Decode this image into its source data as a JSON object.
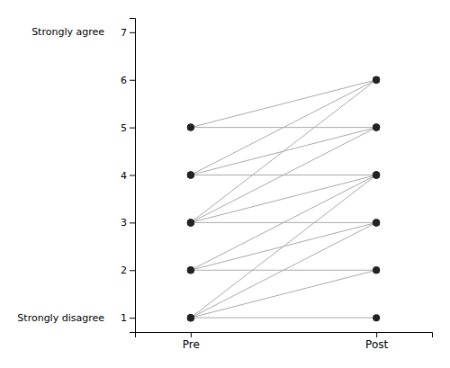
{
  "chart_data": {
    "type": "slope",
    "categories": [
      "Pre",
      "Post"
    ],
    "series": [
      {
        "values": [
          1,
          1
        ]
      },
      {
        "values": [
          1,
          2
        ]
      },
      {
        "values": [
          1,
          3
        ]
      },
      {
        "values": [
          1,
          4
        ]
      },
      {
        "values": [
          2,
          2
        ]
      },
      {
        "values": [
          2,
          3
        ]
      },
      {
        "values": [
          2,
          4
        ]
      },
      {
        "values": [
          3,
          3
        ]
      },
      {
        "values": [
          3,
          4
        ]
      },
      {
        "values": [
          3,
          5
        ]
      },
      {
        "values": [
          3,
          6
        ]
      },
      {
        "values": [
          4,
          4
        ]
      },
      {
        "values": [
          4,
          5
        ]
      },
      {
        "values": [
          4,
          6
        ]
      },
      {
        "values": [
          5,
          5
        ]
      },
      {
        "values": [
          5,
          6
        ]
      }
    ],
    "color": "#aaaaaa",
    "ylim": [
      0.7,
      7.3
    ],
    "yticks": [
      1,
      2,
      3,
      4,
      5,
      6,
      7
    ],
    "annotations": [
      {
        "text": "Strongly agree",
        "y": 7
      },
      {
        "text": "Strongly disagree",
        "y": 1
      }
    ]
  }
}
